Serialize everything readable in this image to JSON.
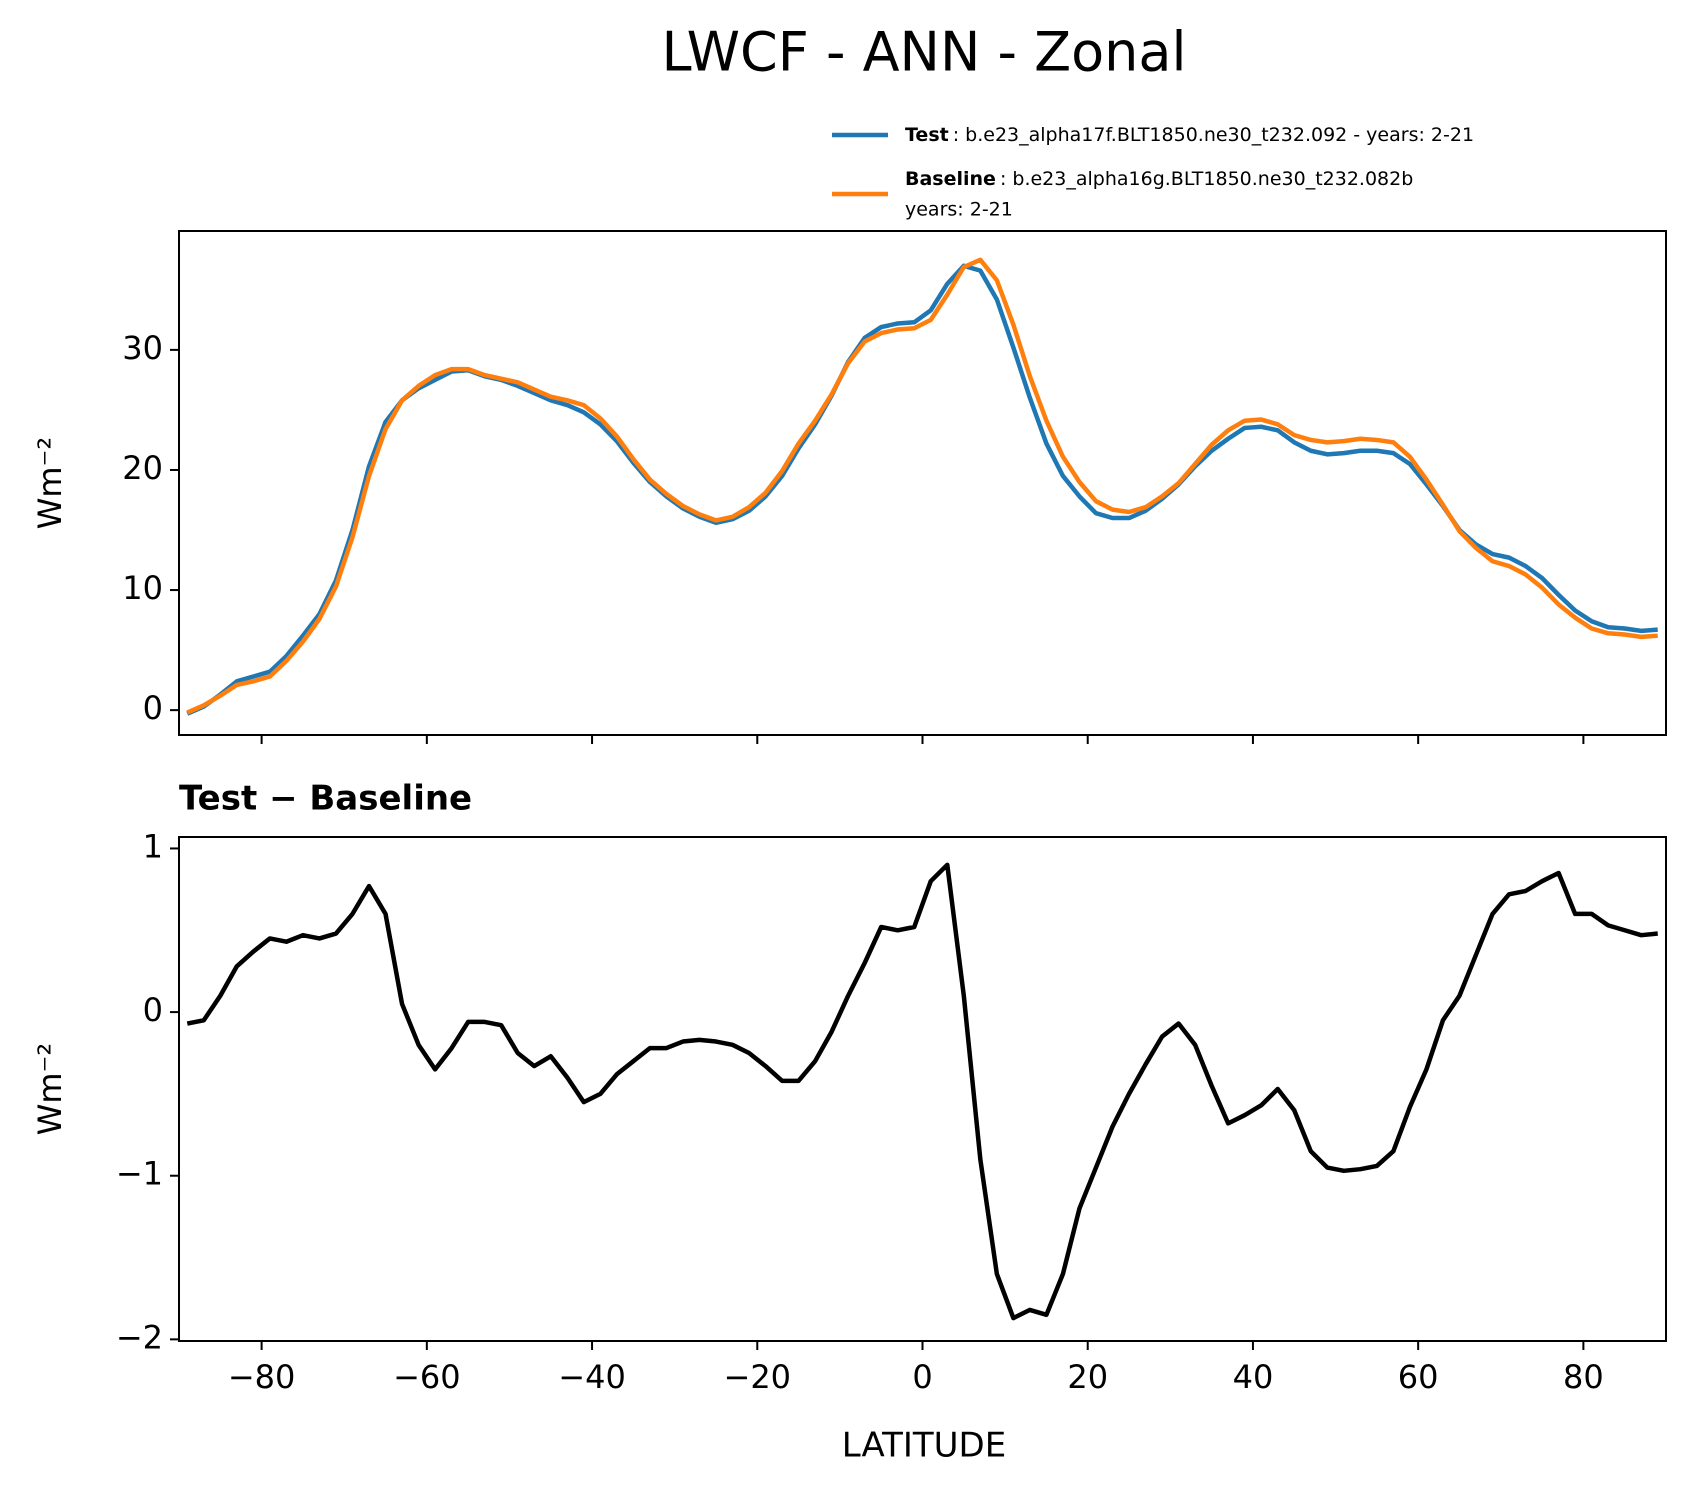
{
  "chart_data": [
    {
      "type": "line",
      "title": "LWCF - ANN - Zonal",
      "ylabel": "Wm⁻²",
      "x": [
        -89,
        -87,
        -85,
        -83,
        -81,
        -79,
        -77,
        -75,
        -73,
        -71,
        -69,
        -67,
        -65,
        -63,
        -61,
        -59,
        -57,
        -55,
        -53,
        -51,
        -49,
        -47,
        -45,
        -43,
        -41,
        -39,
        -37,
        -35,
        -33,
        -31,
        -29,
        -27,
        -25,
        -23,
        -21,
        -19,
        -17,
        -15,
        -13,
        -11,
        -9,
        -7,
        -5,
        -3,
        -1,
        1,
        3,
        5,
        7,
        9,
        11,
        13,
        15,
        17,
        19,
        21,
        23,
        25,
        27,
        29,
        31,
        33,
        35,
        37,
        39,
        41,
        43,
        45,
        47,
        49,
        51,
        53,
        55,
        57,
        59,
        61,
        63,
        65,
        67,
        69,
        71,
        73,
        75,
        77,
        79,
        81,
        83,
        85,
        87,
        89
      ],
      "series": [
        {
          "name": "Test",
          "description": [
            ": b.e23_alpha17f.BLT1850.ne30_t232.092 - years: 2-21"
          ],
          "color": "#1f77b4",
          "values": [
            -0.3,
            0.3,
            1.3,
            2.4,
            2.8,
            3.2,
            4.5,
            6.2,
            8.0,
            10.8,
            15.0,
            20.3,
            24.0,
            25.8,
            26.8,
            27.5,
            28.2,
            28.3,
            27.8,
            27.5,
            27.0,
            26.4,
            25.8,
            25.4,
            24.8,
            23.8,
            22.4,
            20.6,
            19.0,
            17.8,
            16.8,
            16.1,
            15.6,
            15.9,
            16.6,
            17.8,
            19.5,
            21.8,
            23.8,
            26.2,
            29.0,
            31.0,
            31.9,
            32.2,
            32.3,
            33.3,
            35.5,
            37.0,
            36.6,
            34.2,
            30.2,
            26.0,
            22.2,
            19.5,
            17.8,
            16.4,
            16.0,
            16.0,
            16.6,
            17.6,
            18.8,
            20.3,
            21.6,
            22.6,
            23.5,
            23.6,
            23.3,
            22.3,
            21.6,
            21.3,
            21.4,
            21.6,
            21.6,
            21.4,
            20.5,
            18.8,
            17.0,
            15.0,
            13.8,
            13.0,
            12.7,
            12.0,
            11.0,
            9.6,
            8.3,
            7.4,
            6.9,
            6.8,
            6.6,
            6.7
          ]
        },
        {
          "name": "Baseline",
          "description": [
            ": b.e23_alpha16g.BLT1850.ne30_t232.082b",
            "years: 2-21"
          ],
          "color": "#ff7f0e",
          "values": [
            -0.2,
            0.4,
            1.2,
            2.1,
            2.4,
            2.8,
            4.1,
            5.7,
            7.6,
            10.3,
            14.4,
            19.5,
            23.4,
            25.8,
            27.0,
            27.9,
            28.4,
            28.4,
            27.9,
            27.6,
            27.3,
            26.7,
            26.1,
            25.8,
            25.4,
            24.3,
            22.8,
            20.9,
            19.2,
            18.0,
            17.0,
            16.3,
            15.8,
            16.1,
            16.9,
            18.1,
            19.9,
            22.2,
            24.1,
            26.3,
            28.9,
            30.7,
            31.4,
            31.7,
            31.8,
            32.5,
            34.6,
            36.9,
            37.5,
            35.8,
            32.1,
            27.8,
            24.1,
            21.1,
            19.0,
            17.4,
            16.7,
            16.5,
            16.9,
            17.8,
            18.9,
            20.5,
            22.1,
            23.3,
            24.1,
            24.2,
            23.8,
            22.9,
            22.5,
            22.3,
            22.4,
            22.6,
            22.5,
            22.3,
            21.1,
            19.2,
            17.1,
            14.9,
            13.5,
            12.4,
            12.0,
            11.3,
            10.2,
            8.8,
            7.7,
            6.8,
            6.4,
            6.3,
            6.1,
            6.2
          ]
        }
      ],
      "xlim": [
        -90,
        90
      ],
      "xticks": [
        -80,
        -60,
        -40,
        -20,
        0,
        20,
        40,
        60,
        80
      ],
      "ylim": [
        -2.07,
        39.9
      ],
      "yticks": [
        0,
        10,
        20,
        30
      ]
    },
    {
      "type": "line",
      "subtitle": "Test − Baseline",
      "ylabel": "Wm⁻²",
      "xlabel": "LATITUDE",
      "x": [
        -89,
        -87,
        -85,
        -83,
        -81,
        -79,
        -77,
        -75,
        -73,
        -71,
        -69,
        -67,
        -65,
        -63,
        -61,
        -59,
        -57,
        -55,
        -53,
        -51,
        -49,
        -47,
        -45,
        -43,
        -41,
        -39,
        -37,
        -35,
        -33,
        -31,
        -29,
        -27,
        -25,
        -23,
        -21,
        -19,
        -17,
        -15,
        -13,
        -11,
        -9,
        -7,
        -5,
        -3,
        -1,
        1,
        3,
        5,
        7,
        9,
        11,
        13,
        15,
        17,
        19,
        21,
        23,
        25,
        27,
        29,
        31,
        33,
        35,
        37,
        39,
        41,
        43,
        45,
        47,
        49,
        51,
        53,
        55,
        57,
        59,
        61,
        63,
        65,
        67,
        69,
        71,
        73,
        75,
        77,
        79,
        81,
        83,
        85,
        87,
        89
      ],
      "series": [
        {
          "color": "#000000",
          "values": [
            -0.07,
            -0.05,
            0.1,
            0.28,
            0.37,
            0.45,
            0.43,
            0.47,
            0.45,
            0.48,
            0.6,
            0.77,
            0.6,
            0.05,
            -0.2,
            -0.35,
            -0.22,
            -0.06,
            -0.06,
            -0.08,
            -0.25,
            -0.33,
            -0.27,
            -0.4,
            -0.55,
            -0.5,
            -0.38,
            -0.3,
            -0.22,
            -0.22,
            -0.18,
            -0.17,
            -0.18,
            -0.2,
            -0.25,
            -0.33,
            -0.42,
            -0.42,
            -0.3,
            -0.12,
            0.1,
            0.3,
            0.52,
            0.5,
            0.52,
            0.8,
            0.9,
            0.1,
            -0.9,
            -1.6,
            -1.87,
            -1.82,
            -1.85,
            -1.6,
            -1.2,
            -0.95,
            -0.7,
            -0.5,
            -0.32,
            -0.15,
            -0.07,
            -0.2,
            -0.45,
            -0.68,
            -0.63,
            -0.57,
            -0.47,
            -0.6,
            -0.85,
            -0.95,
            -0.97,
            -0.96,
            -0.94,
            -0.85,
            -0.58,
            -0.35,
            -0.05,
            0.1,
            0.35,
            0.6,
            0.72,
            0.74,
            0.8,
            0.85,
            0.6,
            0.6,
            0.53,
            0.5,
            0.47,
            0.48
          ]
        }
      ],
      "xlim": [
        -90,
        90
      ],
      "xticks": [
        {
          "value": -80,
          "label": "−80"
        },
        {
          "value": -60,
          "label": "−60"
        },
        {
          "value": -40,
          "label": "−40"
        },
        {
          "value": -20,
          "label": "−20"
        },
        0,
        20,
        40,
        60,
        80
      ],
      "ylim": [
        -2.01,
        1.07
      ],
      "yticks": [
        {
          "value": -2,
          "label": "−2"
        },
        {
          "value": -1,
          "label": "−1"
        },
        0,
        1
      ]
    }
  ]
}
